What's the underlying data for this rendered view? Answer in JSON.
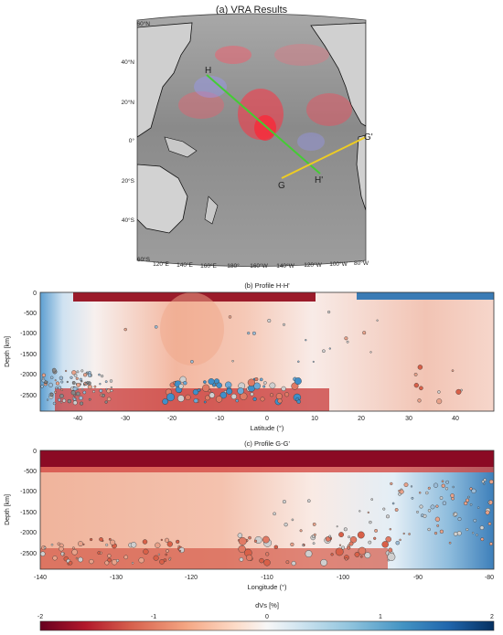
{
  "map_panel": {
    "title": "(a) VRA Results",
    "lat_labels": [
      "60°N",
      "40°N",
      "20°N",
      "0°",
      "20°S",
      "40°S",
      "60°S"
    ],
    "lon_labels": [
      "120°E",
      "140°E",
      "160°E",
      "180°",
      "160°W",
      "140°W",
      "120°W",
      "100°W",
      "80°W"
    ],
    "profile_labels": {
      "H": "H",
      "H_prime": "H'",
      "G": "G",
      "G_prime": "G'"
    },
    "profile_colors": {
      "H": "#44cc33",
      "G": "#eecc22"
    },
    "dot_colors": {
      "fast": "#ff3344",
      "slow": "#9999ff"
    }
  },
  "profile_hh": {
    "title": "(b) Profile H-H'",
    "ylabel": "Depth [km]",
    "xlabel": "Latitude (°)",
    "yticks": [
      "0",
      "-500",
      "-1000",
      "-1500",
      "-2000",
      "-2500"
    ],
    "xticks": [
      "-40",
      "-30",
      "-20",
      "-10",
      "0",
      "10",
      "20",
      "30",
      "40"
    ],
    "xlim": [
      -48,
      48
    ],
    "ylim": [
      -2880,
      0
    ]
  },
  "profile_gg": {
    "title": "(c) Profile G-G'",
    "ylabel": "Depth [km]",
    "xlabel": "Longitude (°)",
    "yticks": [
      "0",
      "-500",
      "-1000",
      "-1500",
      "-2000",
      "-2500"
    ],
    "xticks": [
      "-140",
      "-130",
      "-120",
      "-110",
      "-100",
      "-90",
      "-80"
    ],
    "xlim": [
      -140,
      -80
    ],
    "ylim": [
      -2880,
      0
    ]
  },
  "colorbar": {
    "label": "dVs [%]",
    "ticks": [
      "-2",
      "-1",
      "0",
      "1",
      "2"
    ],
    "range": [
      -2,
      2
    ],
    "colors": [
      "#67001f",
      "#b2182b",
      "#d6604d",
      "#f4a582",
      "#fddbc7",
      "#f7f7f7",
      "#d1e5f0",
      "#92c5de",
      "#4393c3",
      "#2166ac",
      "#053061"
    ]
  }
}
